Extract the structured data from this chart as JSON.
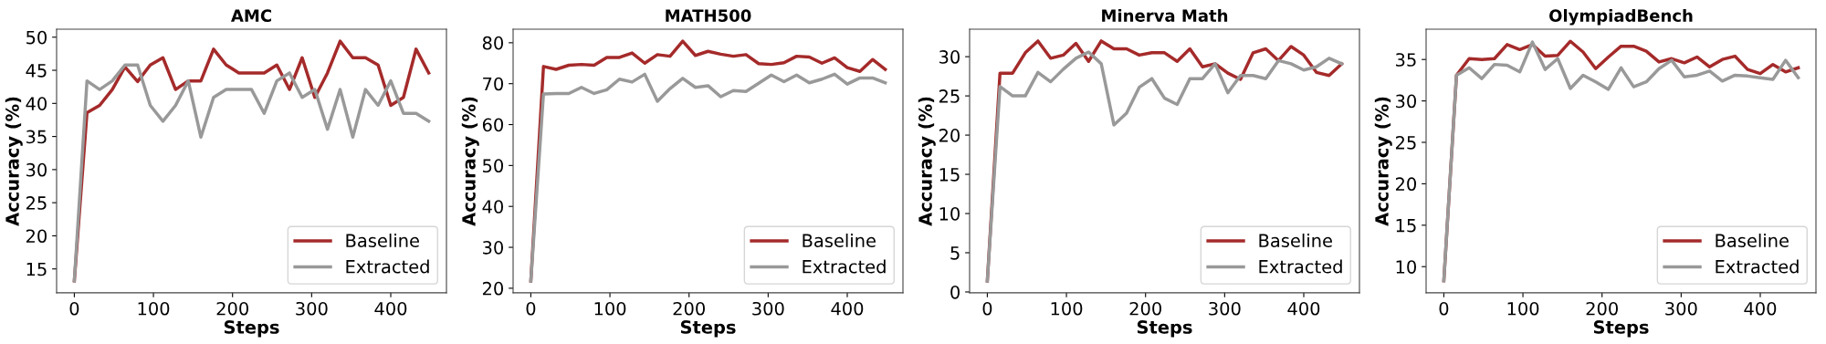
{
  "chart_data": [
    {
      "type": "line",
      "title": "AMC",
      "xlabel": "Steps",
      "ylabel": "Accuracy (%)",
      "x": [
        0,
        16,
        32,
        48,
        64,
        80,
        96,
        112,
        128,
        144,
        160,
        176,
        192,
        208,
        224,
        240,
        256,
        272,
        288,
        304,
        320,
        336,
        352,
        368,
        384,
        400,
        416,
        432,
        448
      ],
      "xlim": [
        -22.4,
        470.4
      ],
      "xticks": [
        0,
        100,
        200,
        300,
        400
      ],
      "ylim": [
        11.4,
        51.2
      ],
      "yticks": [
        15,
        20,
        25,
        30,
        35,
        40,
        45,
        50
      ],
      "legend": "bottom right",
      "grid": false,
      "line_style": "solid",
      "series": [
        {
          "name": "Baseline",
          "color": "#a52a2a",
          "values": [
            13.2,
            38.6,
            39.7,
            42.1,
            45.5,
            43.3,
            45.8,
            46.9,
            42.1,
            43.4,
            43.4,
            48.2,
            45.8,
            44.6,
            44.6,
            44.6,
            45.8,
            42.1,
            46.9,
            40.9,
            44.6,
            49.4,
            46.9,
            46.9,
            45.8,
            39.7,
            40.9,
            48.2,
            44.6
          ]
        },
        {
          "name": "Extracted",
          "color": "#999999",
          "values": [
            13.2,
            43.4,
            42.1,
            43.4,
            45.8,
            45.8,
            39.7,
            37.3,
            39.7,
            43.4,
            34.9,
            40.9,
            42.1,
            42.1,
            42.1,
            38.5,
            43.4,
            44.6,
            40.9,
            42.1,
            36.1,
            42.1,
            34.9,
            42.1,
            39.7,
            43.4,
            38.5,
            38.5,
            37.3
          ]
        }
      ]
    },
    {
      "type": "line",
      "title": "MATH500",
      "xlabel": "Steps",
      "ylabel": "Accuracy (%)",
      "x": [
        0,
        16,
        32,
        48,
        64,
        80,
        96,
        112,
        128,
        144,
        160,
        176,
        192,
        208,
        224,
        240,
        256,
        272,
        288,
        304,
        320,
        336,
        352,
        368,
        384,
        400,
        416,
        432,
        448
      ],
      "xlim": [
        -22.4,
        470.4
      ],
      "xticks": [
        0,
        100,
        200,
        300,
        400
      ],
      "ylim": [
        18.9,
        83.3
      ],
      "yticks": [
        20,
        30,
        40,
        50,
        60,
        70,
        80
      ],
      "legend": "bottom right",
      "grid": false,
      "line_style": "solid",
      "series": [
        {
          "name": "Baseline",
          "color": "#a52a2a",
          "values": [
            21.8,
            74.2,
            73.5,
            74.5,
            74.7,
            74.5,
            76.4,
            76.4,
            77.5,
            75.0,
            77.1,
            76.7,
            80.4,
            76.9,
            77.9,
            77.2,
            76.7,
            77.1,
            74.9,
            74.7,
            75.1,
            76.7,
            76.5,
            75.0,
            76.3,
            73.9,
            73.0,
            75.9,
            73.5
          ]
        },
        {
          "name": "Extracted",
          "color": "#999999",
          "values": [
            21.8,
            67.5,
            67.6,
            67.6,
            69.1,
            67.6,
            68.5,
            71.1,
            70.4,
            72.3,
            65.7,
            68.8,
            71.3,
            69.1,
            69.5,
            66.8,
            68.3,
            68.1,
            70.1,
            72.1,
            70.5,
            72.1,
            70.2,
            71.1,
            72.3,
            69.9,
            71.4,
            71.4,
            70.2
          ]
        }
      ]
    },
    {
      "type": "line",
      "title": "Minerva Math",
      "xlabel": "Steps",
      "ylabel": "Accuracy (%)",
      "x": [
        0,
        16,
        32,
        48,
        64,
        80,
        96,
        112,
        128,
        144,
        160,
        176,
        192,
        208,
        224,
        240,
        256,
        272,
        288,
        304,
        320,
        336,
        352,
        368,
        384,
        400,
        416,
        432,
        448
      ],
      "xlim": [
        -22.4,
        470.4
      ],
      "xticks": [
        0,
        100,
        200,
        300,
        400
      ],
      "ylim": [
        -0.1,
        33.5
      ],
      "yticks": [
        0,
        5,
        10,
        15,
        20,
        25,
        30
      ],
      "legend": "bottom right",
      "grid": false,
      "line_style": "solid",
      "series": [
        {
          "name": "Baseline",
          "color": "#a52a2a",
          "values": [
            1.4,
            27.9,
            27.9,
            30.5,
            32.0,
            29.8,
            30.2,
            31.7,
            29.4,
            32.0,
            31.0,
            31.0,
            30.2,
            30.5,
            30.5,
            29.4,
            31.0,
            28.7,
            29.1,
            27.9,
            27.1,
            30.5,
            31.0,
            29.5,
            31.3,
            30.2,
            28.0,
            27.6,
            29.1
          ]
        },
        {
          "name": "Extracted",
          "color": "#999999",
          "values": [
            1.4,
            26.2,
            25.0,
            25.0,
            28.0,
            26.8,
            28.4,
            29.8,
            30.6,
            29.1,
            21.3,
            22.8,
            26.1,
            27.2,
            24.7,
            23.9,
            27.2,
            27.2,
            29.1,
            25.4,
            27.6,
            27.6,
            27.2,
            29.5,
            29.1,
            28.3,
            28.7,
            29.8,
            29.1
          ]
        }
      ]
    },
    {
      "type": "line",
      "title": "OlympiadBench",
      "xlabel": "Steps",
      "ylabel": "Accuracy (%)",
      "x": [
        0,
        16,
        32,
        48,
        64,
        80,
        96,
        112,
        128,
        144,
        160,
        176,
        192,
        208,
        224,
        240,
        256,
        272,
        288,
        304,
        320,
        336,
        352,
        368,
        384,
        400,
        416,
        432,
        448
      ],
      "xlim": [
        -22.4,
        470.4
      ],
      "xticks": [
        0,
        100,
        200,
        300,
        400
      ],
      "ylim": [
        6.85,
        38.65
      ],
      "yticks": [
        10,
        15,
        20,
        25,
        30,
        35
      ],
      "legend": "bottom right",
      "grid": false,
      "line_style": "solid",
      "series": [
        {
          "name": "Baseline",
          "color": "#a52a2a",
          "values": [
            8.3,
            33.1,
            35.1,
            35.0,
            35.1,
            36.8,
            36.2,
            36.8,
            35.4,
            35.5,
            37.2,
            35.9,
            33.9,
            35.3,
            36.6,
            36.6,
            36.0,
            34.7,
            35.1,
            34.6,
            35.3,
            34.1,
            35.0,
            35.4,
            33.8,
            33.3,
            34.4,
            33.5,
            34.0
          ]
        },
        {
          "name": "Extracted",
          "color": "#999999",
          "values": [
            8.3,
            33.1,
            34.0,
            32.7,
            34.4,
            34.3,
            33.5,
            37.1,
            33.8,
            35.1,
            31.5,
            33.1,
            32.3,
            31.4,
            34.0,
            31.7,
            32.3,
            33.9,
            34.9,
            32.9,
            33.1,
            33.6,
            32.4,
            33.1,
            33.0,
            32.8,
            32.6,
            34.9,
            32.8
          ]
        }
      ]
    }
  ]
}
